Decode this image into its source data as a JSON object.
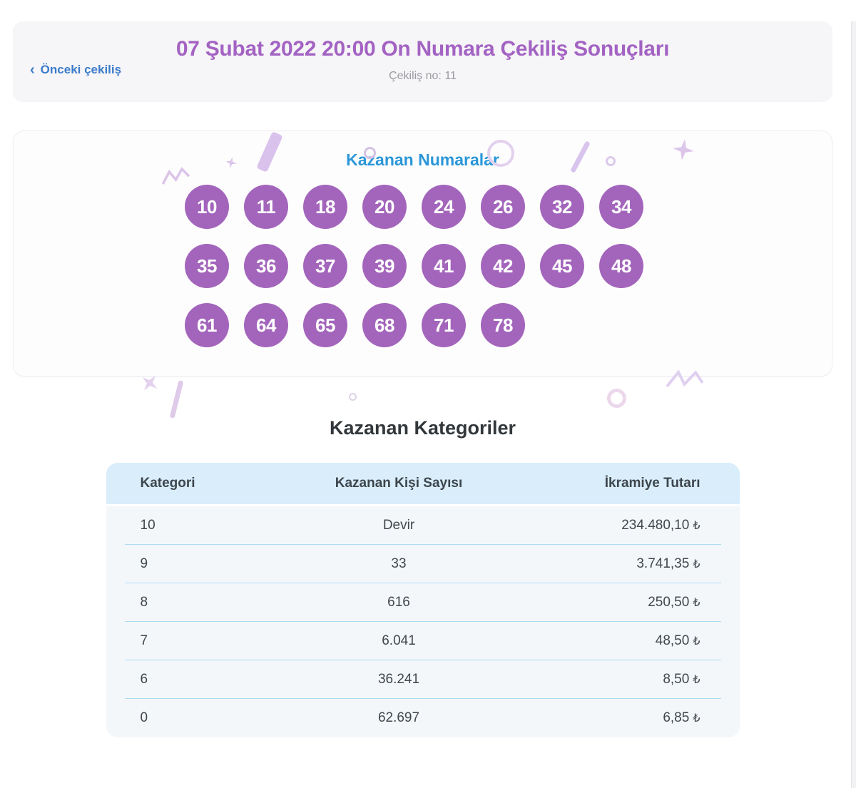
{
  "header": {
    "back_icon_glyph": "‹",
    "back_label": "Önceki çekiliş",
    "title": "07 Şubat 2022 20:00 On Numara Çekiliş Sonuçları",
    "draw_no_label": "Çekiliş no: 11"
  },
  "winning_numbers": {
    "title": "Kazanan Numaralar",
    "rows": [
      [
        "10",
        "11",
        "18",
        "20",
        "24",
        "26",
        "32",
        "34"
      ],
      [
        "35",
        "36",
        "37",
        "39",
        "41",
        "42",
        "45",
        "48"
      ],
      [
        "61",
        "64",
        "65",
        "68",
        "71",
        "78"
      ]
    ]
  },
  "categories": {
    "title": "Kazanan Kategoriler",
    "table": {
      "headers": [
        "Kategori",
        "Kazanan Kişi Sayısı",
        "İkramiye Tutarı"
      ],
      "rows": [
        {
          "category": "10",
          "winners": "Devir",
          "prize": "234.480,10",
          "currency": "₺"
        },
        {
          "category": "9",
          "winners": "33",
          "prize": "3.741,35",
          "currency": "₺"
        },
        {
          "category": "8",
          "winners": "616",
          "prize": "250,50",
          "currency": "₺"
        },
        {
          "category": "7",
          "winners": "6.041",
          "prize": "48,50",
          "currency": "₺"
        },
        {
          "category": "6",
          "winners": "36.241",
          "prize": "8,50",
          "currency": "₺"
        },
        {
          "category": "0",
          "winners": "62.697",
          "prize": "6,85",
          "currency": "₺"
        }
      ]
    }
  },
  "colors": {
    "title_purple": "#a363c3",
    "ball_purple": "#a365bb",
    "link_blue": "#3a7bca",
    "numbers_title_blue": "#2b97d8",
    "heading_dark": "#32373b",
    "table_header_bg": "#d9edfa",
    "table_row_bg": "#f3f7fa",
    "row_separator": "#aedcf2",
    "confetti_purple": "#dcc6ea"
  }
}
